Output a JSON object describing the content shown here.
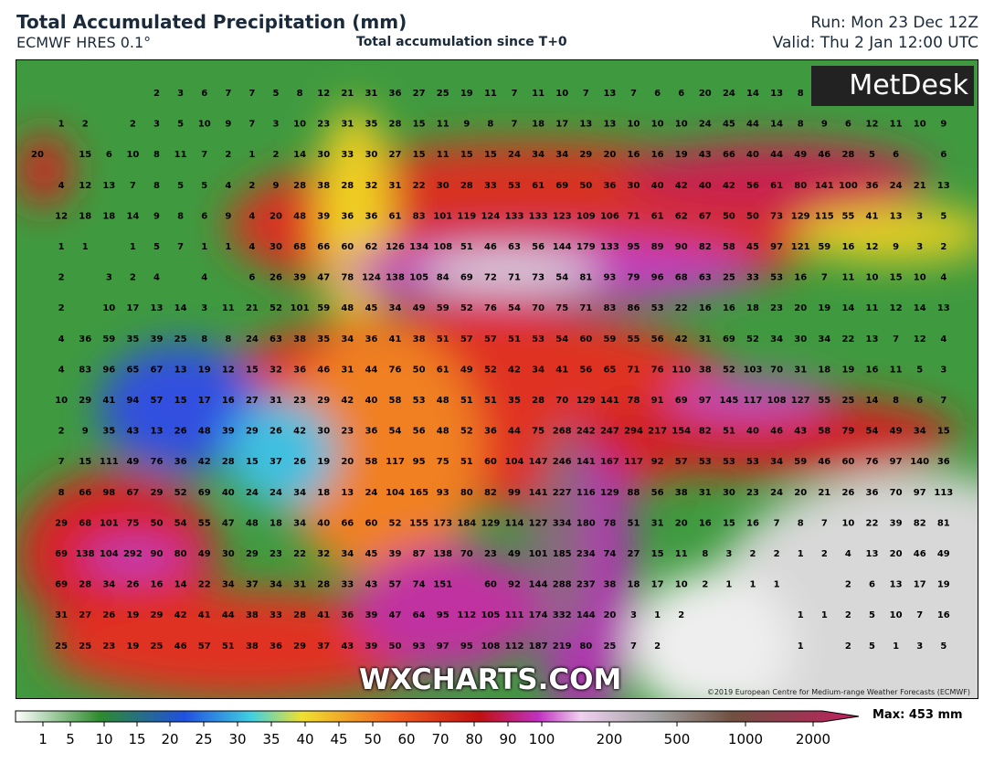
{
  "header": {
    "title": "Total Accumulated Precipitation (mm)",
    "model": "ECMWF HRES 0.1°",
    "subtitle": "Total accumulation since T+0",
    "run": "Run: Mon 23 Dec 12Z",
    "valid": "Valid: Thu 2 Jan 12:00 UTC"
  },
  "map": {
    "logo": "MetDesk",
    "watermark": "WXCHARTS.COM",
    "copyright": "©2019 European Centre for Medium-range Weather Forecasts (ECMWF)",
    "grid_values": [
      [
        null,
        null,
        null,
        null,
        null,
        2,
        3,
        6,
        7,
        7,
        5,
        8,
        12,
        21,
        31,
        36,
        27,
        25,
        19,
        11,
        7,
        11,
        10,
        7,
        13,
        7,
        6,
        6,
        20,
        24,
        14,
        13,
        8,
        null,
        null,
        null,
        null,
        null,
        null
      ],
      [
        null,
        1,
        2,
        null,
        2,
        3,
        5,
        10,
        9,
        7,
        3,
        10,
        23,
        31,
        35,
        28,
        15,
        11,
        9,
        8,
        7,
        18,
        17,
        13,
        13,
        10,
        10,
        10,
        24,
        45,
        44,
        14,
        8,
        9,
        6,
        12,
        11,
        10,
        9
      ],
      [
        20,
        null,
        15,
        6,
        10,
        8,
        11,
        7,
        2,
        1,
        2,
        14,
        30,
        33,
        30,
        27,
        15,
        11,
        15,
        15,
        24,
        34,
        34,
        29,
        20,
        16,
        16,
        19,
        43,
        66,
        40,
        44,
        49,
        46,
        28,
        5,
        6,
        null,
        6
      ],
      [
        null,
        4,
        12,
        13,
        7,
        8,
        5,
        5,
        4,
        2,
        9,
        28,
        38,
        28,
        32,
        31,
        22,
        30,
        28,
        33,
        53,
        61,
        69,
        50,
        36,
        30,
        40,
        42,
        40,
        42,
        56,
        61,
        80,
        141,
        100,
        36,
        24,
        21,
        13
      ],
      [
        null,
        12,
        18,
        18,
        14,
        9,
        8,
        6,
        9,
        4,
        20,
        48,
        39,
        36,
        36,
        61,
        83,
        101,
        119,
        124,
        133,
        133,
        123,
        109,
        106,
        71,
        61,
        62,
        67,
        50,
        50,
        73,
        129,
        115,
        55,
        41,
        13,
        3,
        5
      ],
      [
        null,
        1,
        1,
        null,
        1,
        5,
        7,
        1,
        1,
        4,
        30,
        68,
        66,
        60,
        62,
        126,
        134,
        108,
        51,
        46,
        63,
        56,
        144,
        179,
        133,
        95,
        89,
        90,
        82,
        58,
        45,
        97,
        121,
        59,
        16,
        12,
        9,
        3,
        2
      ],
      [
        null,
        2,
        null,
        3,
        2,
        4,
        null,
        4,
        null,
        6,
        26,
        39,
        47,
        78,
        124,
        138,
        105,
        84,
        69,
        72,
        71,
        73,
        54,
        81,
        93,
        79,
        96,
        68,
        63,
        25,
        33,
        53,
        16,
        7,
        11,
        10,
        15,
        10,
        4
      ],
      [
        null,
        2,
        null,
        10,
        17,
        13,
        14,
        3,
        11,
        21,
        52,
        101,
        59,
        48,
        45,
        34,
        49,
        59,
        52,
        76,
        54,
        70,
        75,
        71,
        83,
        86,
        53,
        22,
        16,
        16,
        18,
        23,
        20,
        19,
        14,
        11,
        12,
        14,
        13
      ],
      [
        null,
        4,
        36,
        59,
        35,
        39,
        25,
        8,
        8,
        24,
        63,
        38,
        35,
        34,
        36,
        41,
        38,
        51,
        57,
        57,
        51,
        53,
        54,
        60,
        59,
        55,
        56,
        42,
        31,
        69,
        52,
        34,
        30,
        34,
        22,
        13,
        7,
        12,
        4
      ],
      [
        null,
        4,
        83,
        96,
        65,
        67,
        13,
        19,
        12,
        15,
        32,
        36,
        46,
        31,
        44,
        76,
        50,
        61,
        49,
        52,
        42,
        34,
        41,
        56,
        65,
        71,
        76,
        110,
        38,
        52,
        103,
        70,
        31,
        18,
        19,
        16,
        11,
        5,
        3
      ],
      [
        null,
        10,
        29,
        41,
        94,
        57,
        15,
        17,
        16,
        27,
        31,
        23,
        29,
        42,
        40,
        58,
        53,
        48,
        51,
        51,
        35,
        28,
        70,
        129,
        141,
        78,
        91,
        69,
        97,
        145,
        117,
        108,
        127,
        55,
        25,
        14,
        8,
        6,
        7
      ],
      [
        null,
        2,
        9,
        35,
        43,
        13,
        26,
        48,
        39,
        29,
        26,
        42,
        30,
        23,
        36,
        54,
        56,
        48,
        52,
        36,
        44,
        75,
        268,
        242,
        247,
        294,
        217,
        154,
        82,
        51,
        40,
        46,
        43,
        58,
        79,
        54,
        49,
        34,
        15
      ],
      [
        null,
        7,
        15,
        111,
        49,
        76,
        36,
        42,
        28,
        15,
        37,
        26,
        19,
        20,
        58,
        117,
        95,
        75,
        51,
        60,
        104,
        147,
        246,
        141,
        167,
        117,
        92,
        57,
        53,
        53,
        53,
        34,
        59,
        46,
        60,
        76,
        97,
        140,
        36
      ],
      [
        null,
        8,
        66,
        98,
        67,
        29,
        52,
        69,
        40,
        24,
        24,
        34,
        18,
        13,
        24,
        104,
        165,
        93,
        80,
        82,
        99,
        141,
        227,
        116,
        129,
        88,
        56,
        38,
        31,
        30,
        23,
        24,
        20,
        21,
        26,
        36,
        70,
        97,
        113
      ],
      [
        null,
        29,
        68,
        101,
        75,
        50,
        54,
        55,
        47,
        48,
        18,
        34,
        40,
        66,
        60,
        52,
        155,
        173,
        184,
        129,
        114,
        127,
        334,
        180,
        78,
        51,
        31,
        20,
        16,
        15,
        16,
        7,
        8,
        7,
        10,
        22,
        39,
        82,
        81
      ],
      [
        null,
        69,
        138,
        104,
        292,
        90,
        80,
        49,
        30,
        29,
        23,
        22,
        32,
        34,
        45,
        39,
        87,
        138,
        70,
        23,
        49,
        101,
        185,
        234,
        74,
        27,
        15,
        11,
        8,
        3,
        2,
        2,
        1,
        2,
        4,
        13,
        20,
        46,
        49
      ],
      [
        null,
        69,
        28,
        34,
        26,
        16,
        14,
        22,
        34,
        37,
        34,
        31,
        28,
        33,
        43,
        57,
        74,
        151,
        null,
        60,
        92,
        144,
        288,
        237,
        38,
        18,
        17,
        10,
        2,
        1,
        1,
        1,
        null,
        null,
        2,
        6,
        13,
        17,
        19
      ],
      [
        null,
        31,
        27,
        26,
        19,
        29,
        42,
        41,
        44,
        38,
        33,
        28,
        41,
        36,
        39,
        47,
        64,
        95,
        112,
        105,
        111,
        174,
        332,
        144,
        20,
        3,
        1,
        2,
        null,
        null,
        null,
        null,
        1,
        1,
        2,
        5,
        10,
        7,
        16
      ],
      [
        null,
        25,
        25,
        23,
        19,
        25,
        46,
        57,
        51,
        38,
        36,
        29,
        37,
        43,
        39,
        50,
        93,
        97,
        95,
        108,
        112,
        187,
        219,
        80,
        25,
        7,
        2,
        null,
        null,
        null,
        null,
        null,
        1,
        null,
        2,
        5,
        1,
        3,
        5
      ]
    ]
  },
  "colorbar": {
    "ticks": [
      1,
      5,
      10,
      15,
      20,
      25,
      30,
      35,
      40,
      45,
      50,
      60,
      70,
      80,
      90,
      100,
      200,
      500,
      1000,
      2000
    ],
    "max_label": "Max: 453 mm"
  }
}
